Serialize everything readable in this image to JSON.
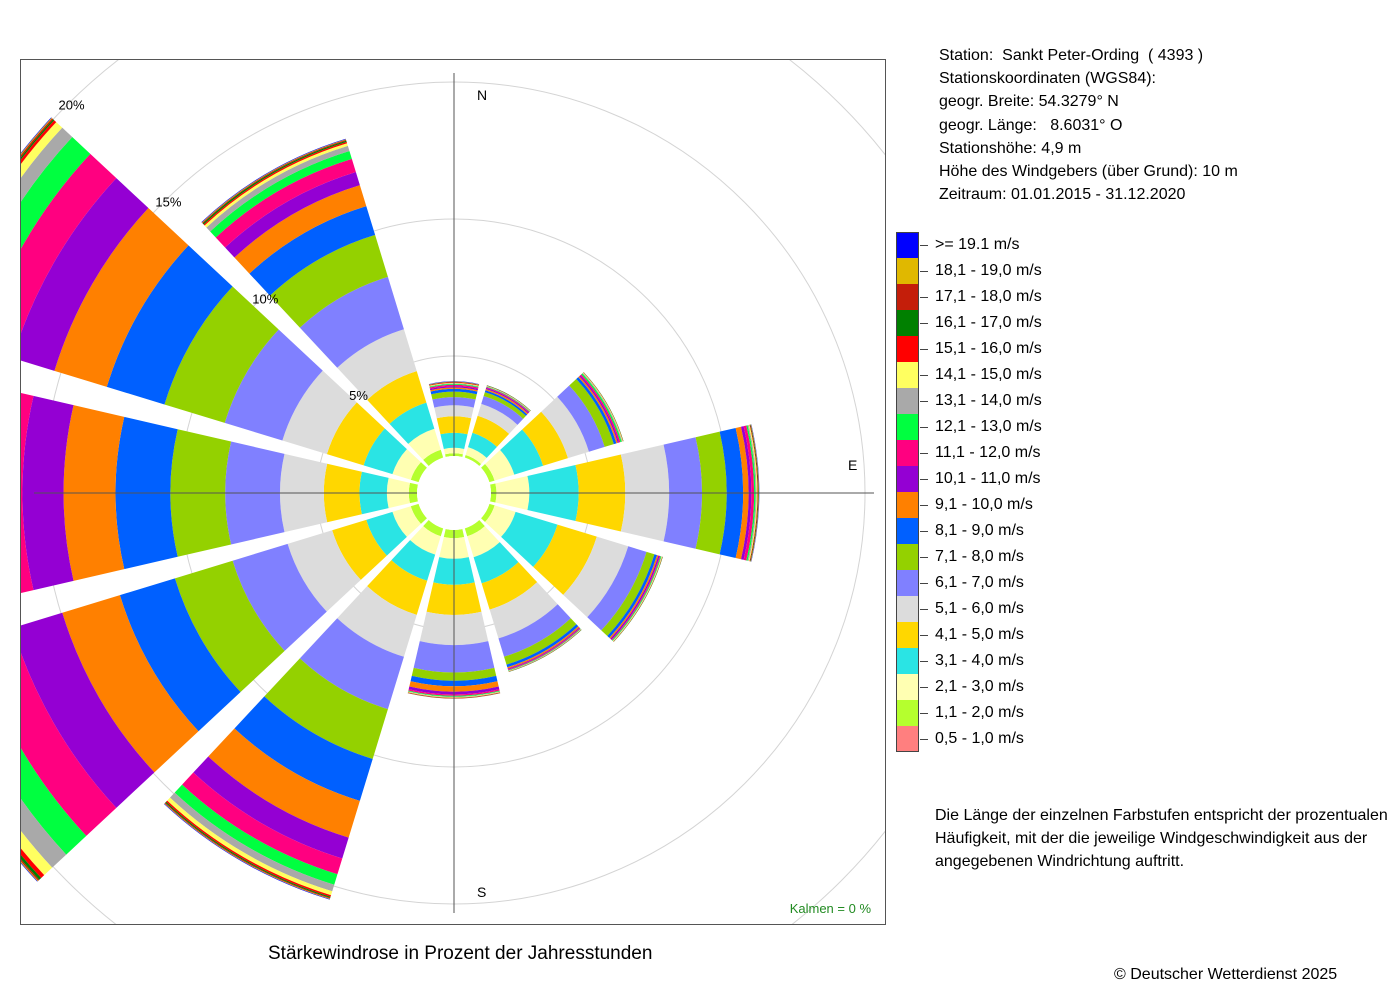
{
  "chart_data": {
    "type": "polar-stacked-bar",
    "title": "Stärkewindrose in Prozent der Jahresstunden",
    "direction_labels": {
      "north": "N",
      "east": "E",
      "south": "S"
    },
    "ring_labels": [
      "5%",
      "10%",
      "15%",
      "20%"
    ],
    "ring_values": [
      5,
      10,
      15,
      20
    ],
    "calm_label": "Kalmen  =  0 %",
    "calm_color": "#228b22",
    "hole_radius_percent": 1.35,
    "sector_width_deg": 26,
    "classes": [
      {
        "label": "0,5 - 1,0 m/s",
        "color": "#ff7f7f"
      },
      {
        "label": "1,1 - 2,0 m/s",
        "color": "#b5ff2e"
      },
      {
        "label": "2,1 - 3,0 m/s",
        "color": "#ffffb2"
      },
      {
        "label": "3,1 - 4,0 m/s",
        "color": "#2ae4e4"
      },
      {
        "label": "4,1 - 5,0 m/s",
        "color": "#ffd700"
      },
      {
        "label": "5,1 - 6,0 m/s",
        "color": "#dcdcdc"
      },
      {
        "label": "6,1 - 7,0 m/s",
        "color": "#8080ff"
      },
      {
        "label": "7,1 - 8,0 m/s",
        "color": "#94d100"
      },
      {
        "label": "8,1 - 9,0 m/s",
        "color": "#0060ff"
      },
      {
        "label": "9,1 - 10,0 m/s",
        "color": "#ff8000"
      },
      {
        "label": "10,1 - 11,0 m/s",
        "color": "#9400d3"
      },
      {
        "label": "11,1 - 12,0 m/s",
        "color": "#ff0080"
      },
      {
        "label": "12,1 - 13,0 m/s",
        "color": "#00ff40"
      },
      {
        "label": "13,1 - 14,0 m/s",
        "color": "#a9a9a9"
      },
      {
        "label": "14,1 - 15,0 m/s",
        "color": "#ffff60"
      },
      {
        "label": "15,1 - 16,0 m/s",
        "color": "#ff0000"
      },
      {
        "label": "16,1 - 17,0 m/s",
        "color": "#008000"
      },
      {
        "label": "17,1 - 18,0 m/s",
        "color": "#c41e0a"
      },
      {
        "label": "18,1 - 19,0 m/s",
        "color": "#e0b800"
      },
      {
        "label": ">= 19.1 m/s",
        "color": "#0000ff"
      }
    ],
    "sectors": [
      {
        "direction_deg": 0,
        "values": [
          0.0,
          0.1,
          0.2,
          0.55,
          0.6,
          0.4,
          0.3,
          0.2,
          0.1,
          0.05,
          0.05,
          0.05,
          0.03,
          0.02,
          0.02,
          0.02,
          0.01,
          0.01,
          0.01,
          0.01
        ]
      },
      {
        "direction_deg": 30,
        "values": [
          0.0,
          0.1,
          0.3,
          0.55,
          0.65,
          0.45,
          0.3,
          0.15,
          0.07,
          0.05,
          0.04,
          0.03,
          0.02,
          0.02,
          0.01,
          0.01,
          0.01,
          0.0,
          0.0,
          0.0
        ]
      },
      {
        "direction_deg": 60,
        "values": [
          0.0,
          0.2,
          0.75,
          1.1,
          0.95,
          0.8,
          0.6,
          0.35,
          0.1,
          0.05,
          0.05,
          0.05,
          0.05,
          0.03,
          0.02,
          0.01,
          0.01,
          0.0,
          0.0,
          0.0
        ]
      },
      {
        "direction_deg": 90,
        "values": [
          0.0,
          0.2,
          1.2,
          1.8,
          1.7,
          1.6,
          1.2,
          0.9,
          0.6,
          0.2,
          0.1,
          0.1,
          0.05,
          0.04,
          0.03,
          0.02,
          0.02,
          0.01,
          0.01,
          0.01
        ]
      },
      {
        "direction_deg": 120,
        "values": [
          0.0,
          0.2,
          0.8,
          1.6,
          1.5,
          1.2,
          0.7,
          0.3,
          0.1,
          0.05,
          0.05,
          0.03,
          0.03,
          0.02,
          0.02,
          0.01,
          0.01,
          0.0,
          0.0,
          0.0
        ]
      },
      {
        "direction_deg": 150,
        "values": [
          0.0,
          0.3,
          0.8,
          1.0,
          1.0,
          1.1,
          0.7,
          0.3,
          0.1,
          0.05,
          0.03,
          0.03,
          0.02,
          0.02,
          0.01,
          0.01,
          0.01,
          0.0,
          0.0,
          0.0
        ]
      },
      {
        "direction_deg": 180,
        "values": [
          0.0,
          0.3,
          0.75,
          0.95,
          1.1,
          1.1,
          1.0,
          0.3,
          0.2,
          0.2,
          0.1,
          0.05,
          0.03,
          0.02,
          0.02,
          0.01,
          0.01,
          0.01,
          0.0,
          0.0
        ]
      },
      {
        "direction_deg": 210,
        "values": [
          0.0,
          0.3,
          0.7,
          1.0,
          1.3,
          1.6,
          2.0,
          1.9,
          1.6,
          1.4,
          0.8,
          0.6,
          0.4,
          0.25,
          0.15,
          0.06,
          0.04,
          0.03,
          0.02,
          0.02
        ]
      },
      {
        "direction_deg": 240,
        "values": [
          0.0,
          0.3,
          0.7,
          1.0,
          1.3,
          1.7,
          2.1,
          2.2,
          2.1,
          2.2,
          1.9,
          1.5,
          1.0,
          0.7,
          0.4,
          0.15,
          0.1,
          0.05,
          0.03,
          0.02
        ]
      },
      {
        "direction_deg": 270,
        "values": [
          0.0,
          0.3,
          0.8,
          1.0,
          1.3,
          1.6,
          2.0,
          2.0,
          2.0,
          1.9,
          1.5,
          1.3,
          1.0,
          0.7,
          0.4,
          0.15,
          0.1,
          0.1,
          0.05,
          0.05
        ]
      },
      {
        "direction_deg": 300,
        "values": [
          0.0,
          0.3,
          0.7,
          1.1,
          1.4,
          1.7,
          2.2,
          2.3,
          2.2,
          2.0,
          1.6,
          1.3,
          0.9,
          0.5,
          0.3,
          0.1,
          0.05,
          0.05,
          0.03,
          0.02
        ]
      },
      {
        "direction_deg": 330,
        "values": [
          0.0,
          0.3,
          0.8,
          1.0,
          1.2,
          1.6,
          2.0,
          1.6,
          1.1,
          0.8,
          0.5,
          0.5,
          0.3,
          0.2,
          0.1,
          0.05,
          0.05,
          0.03,
          0.02,
          0.02
        ]
      }
    ]
  },
  "station": {
    "line1": "Station:  Sankt Peter-Ording  ( 4393 )",
    "line2": "Stationskoordinaten (WGS84):",
    "line3": "geogr. Breite: 54.3279° N",
    "line4": "geogr. Länge:   8.6031° O",
    "line5": "Stationshöhe: 4,9 m",
    "line6": "Höhe des Windgebers (über Grund): 10 m",
    "line7": "Zeitraum: 01.01.2015 - 31.12.2020"
  },
  "note": {
    "line1": "Die Länge der einzelnen Farbstufen entspricht der prozentualen",
    "line2": "Häufigkeit, mit der die jeweilige Windgeschwindigkeit aus der",
    "line3": "angegebenen Windrichtung auftritt."
  },
  "copyright": "© Deutscher Wetterdienst  2025"
}
